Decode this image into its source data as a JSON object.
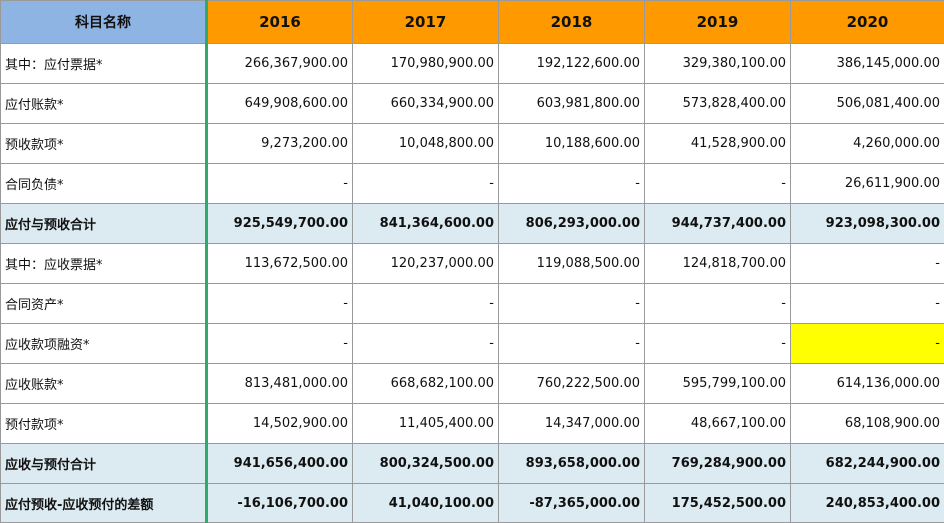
{
  "table": {
    "header": [
      "科目名称",
      "2016",
      "2017",
      "2018",
      "2019",
      "2020"
    ],
    "rows": [
      {
        "label": "其中：应付票据*",
        "values": [
          "266,367,900.00",
          "170,980,900.00",
          "192,122,600.00",
          "329,380,100.00",
          "386,145,000.00"
        ]
      },
      {
        "label": "应付账款*",
        "values": [
          "649,908,600.00",
          "660,334,900.00",
          "603,981,800.00",
          "573,828,400.00",
          "506,081,400.00"
        ]
      },
      {
        "label": "预收款项*",
        "values": [
          "9,273,200.00",
          "10,048,800.00",
          "10,188,600.00",
          "41,528,900.00",
          "4,260,000.00"
        ]
      },
      {
        "label": "合同负债*",
        "values": [
          "-",
          "-",
          "-",
          "-",
          "26,611,900.00"
        ]
      },
      {
        "label": "应付与预收合计",
        "values": [
          "925,549,700.00",
          "841,364,600.00",
          "806,293,000.00",
          "944,737,400.00",
          "923,098,300.00"
        ]
      },
      {
        "label": "其中：应收票据*",
        "values": [
          "113,672,500.00",
          "120,237,000.00",
          "119,088,500.00",
          "124,818,700.00",
          "-"
        ]
      },
      {
        "label": "合同资产*",
        "values": [
          "-",
          "-",
          "-",
          "-",
          "-"
        ]
      },
      {
        "label": "应收款项融资*",
        "values": [
          "-",
          "-",
          "-",
          "-",
          "-"
        ]
      },
      {
        "label": "应收账款*",
        "values": [
          "813,481,000.00",
          "668,682,100.00",
          "760,222,500.00",
          "595,799,100.00",
          "614,136,000.00"
        ]
      },
      {
        "label": "预付款项*",
        "values": [
          "14,502,900.00",
          "11,405,400.00",
          "14,347,000.00",
          "48,667,100.00",
          "68,108,900.00"
        ]
      },
      {
        "label": "应收与预付合计",
        "values": [
          "941,656,400.00",
          "800,324,500.00",
          "893,658,000.00",
          "769,284,900.00",
          "682,244,900.00"
        ]
      },
      {
        "label": "应付预收-应收预付的差额",
        "values": [
          "-16,106,700.00",
          "41,040,100.00",
          "-87,365,000.00",
          "175,452,500.00",
          "240,853,400.00"
        ]
      }
    ]
  },
  "colors": {
    "header_label_bg": "#8db4e2",
    "header_year_bg": "#ff9900",
    "total_row_bg": "#dcebf1",
    "highlight_cell_bg": "#ffff00",
    "label_divider": "#2eaa6a"
  }
}
